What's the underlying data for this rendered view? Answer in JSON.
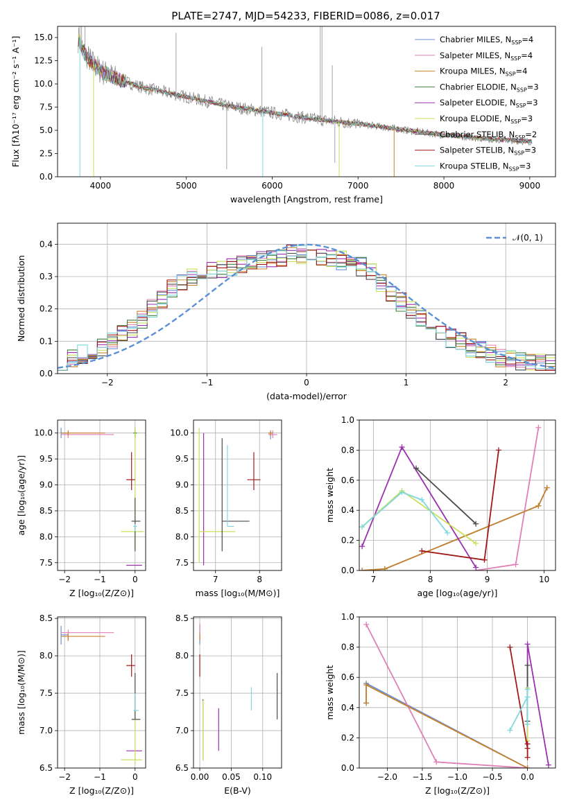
{
  "figure_title": "PLATE=2747, MJD=54233, FIBERID=0086, z=0.017",
  "colors": {
    "Chabrier MILES": "#6b8fd6",
    "Salpeter MILES": "#e07fb6",
    "Kroupa MILES": "#c8822a",
    "Chabrier ELODIE": "#3f7d3f",
    "Salpeter ELODIE": "#9a2fb0",
    "Kroupa ELODIE": "#c8e05a",
    "Chabrier STELIB": "#4a4a4a",
    "Salpeter STELIB": "#a01818",
    "Kroupa STELIB": "#7fd8de"
  },
  "chart_data": [
    {
      "id": "spectrum",
      "type": "line",
      "title": "PLATE=2747, MJD=54233, FIBERID=0086, z=0.017",
      "xlabel": "wavelength [Angstrom, rest frame]",
      "ylabel": "Flux [fλ10⁻¹⁷ erg cm⁻² s⁻¹ A⁻¹]",
      "xlim": [
        3500,
        9300
      ],
      "ylim": [
        0,
        16.2
      ],
      "xticks": [
        4000,
        5000,
        6000,
        7000,
        8000,
        9000
      ],
      "yticks": [
        0.0,
        2.5,
        5.0,
        7.5,
        10.0,
        12.5,
        15.0
      ],
      "grid": false,
      "legend_position": "top-right",
      "observed": {
        "color": "#808080",
        "x": [
          3750,
          3800,
          3900,
          4000,
          4200,
          4500,
          5000,
          5500,
          6000,
          6500,
          7000,
          7500,
          8000,
          8500,
          9000
        ],
        "y": [
          14.8,
          13.5,
          12.3,
          11.4,
          10.5,
          9.6,
          8.6,
          7.6,
          6.9,
          6.2,
          5.7,
          5.1,
          4.5,
          4.1,
          3.8
        ]
      },
      "legend": [
        {
          "label": "Chabrier MILES",
          "nssp": 4
        },
        {
          "label": "Salpeter MILES",
          "nssp": 4
        },
        {
          "label": "Kroupa MILES",
          "nssp": 4
        },
        {
          "label": "Chabrier ELODIE",
          "nssp": 3
        },
        {
          "label": "Salpeter ELODIE",
          "nssp": 3
        },
        {
          "label": "Kroupa ELODIE",
          "nssp": 3
        },
        {
          "label": "Chabrier STELIB",
          "nssp": 2
        },
        {
          "label": "Salpeter STELIB",
          "nssp": 3
        },
        {
          "label": "Kroupa STELIB",
          "nssp": 3
        }
      ]
    },
    {
      "id": "residuals",
      "type": "line",
      "xlabel": "(data-model)/error",
      "ylabel": "Normed distribution",
      "xlim": [
        -2.5,
        2.5
      ],
      "ylim": [
        0,
        0.465
      ],
      "xticks": [
        -2,
        -1,
        0,
        1,
        2
      ],
      "yticks": [
        0.0,
        0.1,
        0.2,
        0.3,
        0.4
      ],
      "grid": true,
      "legend_position": "top-right",
      "gaussian_label": "𝒩(0, 1)",
      "bin_width": 0.1,
      "bin_start": -2.5,
      "envelope": [
        0.04,
        0.05,
        0.06,
        0.07,
        0.08,
        0.1,
        0.12,
        0.14,
        0.17,
        0.2,
        0.23,
        0.26,
        0.28,
        0.3,
        0.31,
        0.32,
        0.32,
        0.33,
        0.34,
        0.35,
        0.35,
        0.36,
        0.36,
        0.37,
        0.37,
        0.37,
        0.36,
        0.36,
        0.35,
        0.34,
        0.33,
        0.31,
        0.28,
        0.25,
        0.22,
        0.2,
        0.17,
        0.15,
        0.13,
        0.11,
        0.1,
        0.08,
        0.07,
        0.06,
        0.05,
        0.05,
        0.04,
        0.04,
        0.03,
        0.03
      ]
    },
    {
      "id": "age-vs-Z",
      "type": "scatter",
      "xlabel": "Z [log₁₀(Z/Z⊙)]",
      "ylabel": "age  [log₁₀(age/yr)]",
      "xlim": [
        -2.2,
        0.3
      ],
      "ylim": [
        7.35,
        10.25
      ],
      "xticks": [
        -2,
        -1,
        0
      ],
      "yticks": [
        7.5,
        8.0,
        8.5,
        9.0,
        9.5,
        10.0
      ],
      "grid": true,
      "points": [
        {
          "series": "Chabrier MILES",
          "x": -2.1,
          "y": 10.0,
          "xlo": -2.1,
          "xhi": -1.9,
          "ylo": 9.9,
          "yhi": 10.1
        },
        {
          "series": "Salpeter MILES",
          "x": -1.9,
          "y": 9.97,
          "xlo": -2.1,
          "xhi": -0.6,
          "ylo": 9.9,
          "yhi": 10.05
        },
        {
          "series": "Kroupa MILES",
          "x": -1.9,
          "y": 10.0,
          "xlo": -2.1,
          "xhi": -0.85,
          "ylo": 9.95,
          "yhi": 10.05
        },
        {
          "series": "Chabrier ELODIE",
          "x": 0.0,
          "y": 10.0,
          "xlo": -0.05,
          "xhi": 0.05,
          "ylo": 9.9,
          "yhi": 10.1
        },
        {
          "series": "Salpeter ELODIE",
          "x": 0.0,
          "y": 7.45,
          "xlo": -0.25,
          "xhi": 0.2,
          "ylo": 7.45,
          "yhi": 7.45
        },
        {
          "series": "Kroupa ELODIE",
          "x": 0.0,
          "y": 8.1,
          "xlo": -0.4,
          "xhi": 0.25,
          "ylo": 7.75,
          "yhi": 10.1
        },
        {
          "series": "Chabrier STELIB",
          "x": 0.0,
          "y": 8.3,
          "xlo": -0.1,
          "xhi": 0.15,
          "ylo": 7.72,
          "yhi": 8.75
        },
        {
          "series": "Salpeter STELIB",
          "x": -0.1,
          "y": 9.1,
          "xlo": -0.25,
          "xhi": 0.0,
          "ylo": 8.9,
          "yhi": 9.63
        },
        {
          "series": "Kroupa STELIB",
          "x": 0.0,
          "y": 8.2,
          "xlo": -0.05,
          "xhi": 0.05,
          "ylo": 8.1,
          "yhi": 8.25
        }
      ]
    },
    {
      "id": "age-vs-mass",
      "type": "scatter",
      "xlabel": "mass [log₁₀(M/M⊙)]",
      "ylabel": "",
      "xlim": [
        6.5,
        8.5
      ],
      "ylim": [
        7.35,
        10.25
      ],
      "xticks": [
        7,
        8
      ],
      "yticks": [
        7.5,
        8.0,
        8.5,
        9.0,
        9.5,
        10.0
      ],
      "grid": true,
      "points": [
        {
          "series": "Chabrier MILES",
          "x": 8.25,
          "y": 10.0,
          "xlo": 8.2,
          "xhi": 8.3,
          "ylo": 9.88,
          "yhi": 10.05
        },
        {
          "series": "Salpeter MILES",
          "x": 8.3,
          "y": 9.97,
          "xlo": 8.2,
          "xhi": 8.4,
          "ylo": 9.9,
          "yhi": 10.05
        },
        {
          "series": "Kroupa MILES",
          "x": 8.25,
          "y": 10.0,
          "xlo": 8.2,
          "xhi": 8.3,
          "ylo": 9.95,
          "yhi": 10.05
        },
        {
          "series": "Salpeter ELODIE",
          "x": 6.73,
          "y": 7.45,
          "xlo": 6.73,
          "xhi": 6.73,
          "ylo": 7.45,
          "yhi": 10.0
        },
        {
          "series": "Kroupa ELODIE",
          "x": 6.63,
          "y": 8.1,
          "xlo": 6.63,
          "xhi": 7.45,
          "ylo": 7.5,
          "yhi": 10.1
        },
        {
          "series": "Chabrier STELIB",
          "x": 7.15,
          "y": 8.3,
          "xlo": 7.15,
          "xhi": 7.77,
          "ylo": 7.72,
          "yhi": 9.9
        },
        {
          "series": "Salpeter STELIB",
          "x": 7.87,
          "y": 9.1,
          "xlo": 7.72,
          "xhi": 8.02,
          "ylo": 8.9,
          "yhi": 9.63
        },
        {
          "series": "Kroupa STELIB",
          "x": 7.27,
          "y": 8.2,
          "xlo": 7.27,
          "xhi": 7.42,
          "ylo": 8.2,
          "yhi": 9.77
        }
      ]
    },
    {
      "id": "weight-vs-age",
      "type": "line",
      "xlabel": "age  [log₁₀(age/yr)]",
      "ylabel": "mass weight",
      "xlim": [
        6.75,
        10.2
      ],
      "ylim": [
        0,
        1.0
      ],
      "xticks": [
        7,
        8,
        9,
        10
      ],
      "yticks": [
        0.0,
        0.2,
        0.4,
        0.6,
        0.8,
        1.0
      ],
      "grid": true,
      "series": [
        {
          "name": "Chabrier MILES",
          "x": [
            6.8,
            7.2,
            9.9,
            10.05
          ],
          "y": [
            0.0,
            0.01,
            0.43,
            0.55
          ]
        },
        {
          "name": "Salpeter MILES",
          "x": [
            8.8,
            9.5,
            9.9
          ],
          "y": [
            0.0,
            0.04,
            0.95
          ]
        },
        {
          "name": "Kroupa MILES",
          "x": [
            6.8,
            7.2,
            9.9,
            10.05
          ],
          "y": [
            0.0,
            0.01,
            0.43,
            0.55
          ]
        },
        {
          "name": "Salpeter ELODIE",
          "x": [
            6.8,
            7.5,
            8.8
          ],
          "y": [
            0.16,
            0.82,
            0.02
          ]
        },
        {
          "name": "Kroupa ELODIE",
          "x": [
            6.8,
            7.5,
            8.8
          ],
          "y": [
            0.29,
            0.53,
            0.18
          ]
        },
        {
          "name": "Chabrier STELIB",
          "x": [
            7.75,
            8.8
          ],
          "y": [
            0.68,
            0.31
          ]
        },
        {
          "name": "Salpeter STELIB",
          "x": [
            7.85,
            8.95,
            9.2
          ],
          "y": [
            0.13,
            0.07,
            0.8
          ]
        },
        {
          "name": "Kroupa STELIB",
          "x": [
            6.8,
            7.5,
            7.85,
            8.3
          ],
          "y": [
            0.29,
            0.52,
            0.47,
            0.25
          ]
        }
      ]
    },
    {
      "id": "mass-vs-Z",
      "type": "scatter",
      "xlabel": "Z [log₁₀(Z/Z⊙)]",
      "ylabel": "mass [log₁₀(M/M⊙)]",
      "xlim": [
        -2.2,
        0.3
      ],
      "ylim": [
        6.5,
        8.52
      ],
      "xticks": [
        -2,
        -1,
        0
      ],
      "yticks": [
        6.5,
        7.0,
        7.5,
        8.0,
        8.5
      ],
      "grid": true,
      "points": [
        {
          "series": "Chabrier MILES",
          "x": -2.1,
          "y": 8.28,
          "xlo": -2.1,
          "xhi": -1.9,
          "ylo": 8.15,
          "yhi": 8.4
        },
        {
          "series": "Salpeter MILES",
          "x": -1.9,
          "y": 8.31,
          "xlo": -2.1,
          "xhi": -0.6,
          "ylo": 8.2,
          "yhi": 8.35
        },
        {
          "series": "Kroupa MILES",
          "x": -1.9,
          "y": 8.26,
          "xlo": -2.1,
          "xhi": -0.85,
          "ylo": 8.2,
          "yhi": 8.3
        },
        {
          "series": "Salpeter ELODIE",
          "x": -0.25,
          "y": 6.73,
          "xlo": -0.25,
          "xhi": 0.2,
          "ylo": 6.73,
          "yhi": 6.73
        },
        {
          "series": "Kroupa ELODIE",
          "x": 0.0,
          "y": 6.61,
          "xlo": -0.4,
          "xhi": 0.2,
          "ylo": 6.55,
          "yhi": 7.4
        },
        {
          "series": "Chabrier STELIB",
          "x": 0.0,
          "y": 7.15,
          "xlo": -0.1,
          "xhi": 0.15,
          "ylo": 7.15,
          "yhi": 7.77
        },
        {
          "series": "Salpeter STELIB",
          "x": -0.1,
          "y": 7.87,
          "xlo": -0.25,
          "xhi": 0.0,
          "ylo": 7.72,
          "yhi": 8.02
        },
        {
          "series": "Kroupa STELIB",
          "x": 0.0,
          "y": 7.27,
          "xlo": -0.05,
          "xhi": 0.1,
          "ylo": 7.27,
          "yhi": 7.5
        }
      ]
    },
    {
      "id": "mass-vs-ebv",
      "type": "scatter",
      "xlabel": "E(B-V)",
      "ylabel": "",
      "xlim": [
        -0.01,
        0.13
      ],
      "ylim": [
        6.5,
        8.52
      ],
      "xticks": [
        0.0,
        0.05,
        0.1
      ],
      "yticks": [
        6.5,
        7.0,
        7.5,
        8.0,
        8.5
      ],
      "grid": true,
      "points": [
        {
          "series": "Chabrier MILES",
          "x": 0.0,
          "y": 8.28,
          "ylo": 8.15,
          "yhi": 8.42
        },
        {
          "series": "Salpeter MILES",
          "x": 0.0,
          "y": 8.31,
          "ylo": 8.2,
          "yhi": 8.43
        },
        {
          "series": "Kroupa MILES",
          "x": 0.0,
          "y": 8.26,
          "ylo": 8.2,
          "yhi": 8.3
        },
        {
          "series": "Chabrier ELODIE",
          "x": 0.005,
          "y": 7.0,
          "ylo": 6.6,
          "yhi": 7.42
        },
        {
          "series": "Salpeter ELODIE",
          "x": 0.03,
          "y": 6.95,
          "ylo": 6.73,
          "yhi": 7.3
        },
        {
          "series": "Kroupa ELODIE",
          "x": 0.005,
          "y": 7.0,
          "ylo": 6.6,
          "yhi": 7.4
        },
        {
          "series": "Chabrier STELIB",
          "x": 0.123,
          "y": 7.45,
          "ylo": 7.15,
          "yhi": 7.77
        },
        {
          "series": "Salpeter STELIB",
          "x": 0.0,
          "y": 7.87,
          "ylo": 7.72,
          "yhi": 8.02
        },
        {
          "series": "Kroupa STELIB",
          "x": 0.082,
          "y": 7.42,
          "ylo": 7.27,
          "yhi": 7.58
        }
      ]
    },
    {
      "id": "weight-vs-Z",
      "type": "line",
      "xlabel": "Z [log₁₀(Z/Z⊙)]",
      "ylabel": "mass weight",
      "xlim": [
        -2.4,
        0.4
      ],
      "ylim": [
        0,
        1.0
      ],
      "xticks": [
        -2.0,
        -1.5,
        -1.0,
        -0.5,
        0.0
      ],
      "yticks": [
        0.0,
        0.2,
        0.4,
        0.6,
        0.8,
        1.0
      ],
      "grid": true,
      "series": [
        {
          "name": "Chabrier MILES",
          "x": [
            -2.3,
            -2.3,
            0.0
          ],
          "y": [
            0.43,
            0.56,
            0.0
          ]
        },
        {
          "name": "Salpeter MILES",
          "x": [
            -2.3,
            -1.3,
            0.0
          ],
          "y": [
            0.95,
            0.04,
            0.0
          ]
        },
        {
          "name": "Kroupa MILES",
          "x": [
            -2.3,
            -2.3,
            0.0
          ],
          "y": [
            0.43,
            0.55,
            0.0
          ]
        },
        {
          "name": "Salpeter ELODIE",
          "x": [
            0.0,
            0.0,
            0.3
          ],
          "y": [
            0.16,
            0.82,
            0.02
          ]
        },
        {
          "name": "Kroupa ELODIE",
          "x": [
            0.0,
            0.0,
            0.0
          ],
          "y": [
            0.29,
            0.53,
            0.18
          ]
        },
        {
          "name": "Chabrier STELIB",
          "x": [
            0.0,
            0.0
          ],
          "y": [
            0.68,
            0.31
          ]
        },
        {
          "name": "Salpeter STELIB",
          "x": [
            -0.25,
            0.0,
            0.0,
            0.0
          ],
          "y": [
            0.8,
            0.13,
            0.07,
            0.16
          ]
        },
        {
          "name": "Kroupa STELIB",
          "x": [
            -0.25,
            0.0,
            0.0,
            0.0
          ],
          "y": [
            0.25,
            0.47,
            0.52,
            0.29
          ]
        }
      ]
    }
  ]
}
